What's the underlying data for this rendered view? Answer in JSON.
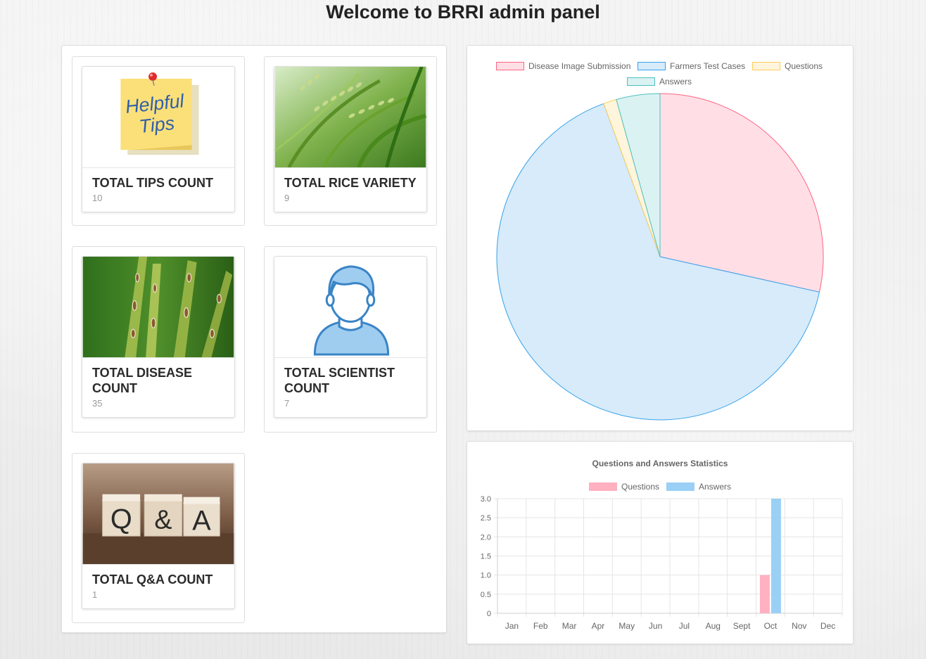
{
  "header": {
    "title": "Welcome to BRRI admin panel"
  },
  "cards": [
    {
      "title": "TOTAL TIPS COUNT",
      "count": "10",
      "image": "helpful-tips-note"
    },
    {
      "title": "TOTAL RICE VARIETY",
      "count": "9",
      "image": "rice-plant-photo"
    },
    {
      "title": "TOTAL DISEASE COUNT",
      "count": "35",
      "image": "diseased-leaf-photo"
    },
    {
      "title": "TOTAL SCIENTIST COUNT",
      "count": "7",
      "image": "person-icon"
    },
    {
      "title": "TOTAL Q&A COUNT",
      "count": "1",
      "image": "qa-blocks-photo"
    }
  ],
  "tips_note_text": [
    "Helpful",
    "Tips"
  ],
  "qa_blocks_text": [
    "Q",
    "&",
    "A"
  ],
  "colors": {
    "pink_fill": "#ffdfe5",
    "pink_border": "#ff6384",
    "blue_fill": "#d7ebfa",
    "blue_border": "#36a2eb",
    "yellow_fill": "#fff5dd",
    "yellow_border": "#ffcd56",
    "teal_fill": "#dbf2f2",
    "teal_border": "#4bc0c0",
    "bar_pink": "#ffb1c1",
    "bar_blue": "#9ad0f5"
  },
  "chart_data": [
    {
      "type": "pie",
      "legend_position": "top",
      "labels": [
        "Disease Image Submission",
        "Farmers Test Cases",
        "Questions",
        "Answers"
      ],
      "values": [
        35,
        81,
        1.6,
        5.3
      ]
    },
    {
      "type": "bar",
      "title": "Questions and Answers Statistics",
      "legend_position": "top",
      "categories": [
        "Jan",
        "Feb",
        "Mar",
        "Apr",
        "May",
        "Jun",
        "Jul",
        "Aug",
        "Sept",
        "Oct",
        "Nov",
        "Dec"
      ],
      "series": [
        {
          "name": "Questions",
          "values": [
            0,
            0,
            0,
            0,
            0,
            0,
            0,
            0,
            0,
            1,
            0,
            0
          ]
        },
        {
          "name": "Answers",
          "values": [
            0,
            0,
            0,
            0,
            0,
            0,
            0,
            0,
            0,
            3,
            0,
            0
          ]
        }
      ],
      "ylim": [
        0,
        3
      ],
      "yticks": [
        "0",
        "0.5",
        "1.0",
        "1.5",
        "2.0",
        "2.5",
        "3.0"
      ],
      "grid": true
    }
  ]
}
